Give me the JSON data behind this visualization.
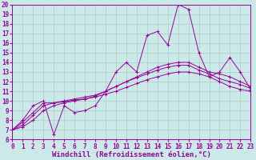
{
  "background_color": "#cbe9e9",
  "line_color": "#990099",
  "grid_color": "#aacccc",
  "xlabel": "Windchill (Refroidissement éolien,°C)",
  "xlabel_fontsize": 6.5,
  "xlabel_fontweight": "bold",
  "tick_fontsize": 5.5,
  "ylim": [
    6,
    20
  ],
  "xlim": [
    0,
    23
  ],
  "yticks": [
    6,
    7,
    8,
    9,
    10,
    11,
    12,
    13,
    14,
    15,
    16,
    17,
    18,
    19,
    20
  ],
  "xticks": [
    0,
    1,
    2,
    3,
    4,
    5,
    6,
    7,
    8,
    9,
    10,
    11,
    12,
    13,
    14,
    15,
    16,
    17,
    18,
    19,
    20,
    21,
    22,
    23
  ],
  "series": [
    [
      7,
      8,
      9.5,
      10,
      6.5,
      9.5,
      8.8,
      9,
      9.5,
      11,
      13,
      14,
      13,
      16.8,
      17.2,
      15.8,
      20,
      19.5,
      15,
      12.5,
      13,
      14.5,
      13,
      11.2
    ],
    [
      7,
      7.8,
      8.8,
      9.8,
      9.8,
      9.9,
      10.1,
      10.2,
      10.5,
      11.0,
      11.5,
      12.0,
      12.5,
      13.0,
      13.5,
      13.8,
      14.0,
      14.0,
      13.5,
      13.0,
      12.8,
      12.5,
      12.0,
      11.5
    ],
    [
      7,
      7.5,
      8.5,
      9.5,
      9.8,
      10.0,
      10.2,
      10.4,
      10.6,
      11.0,
      11.5,
      12.0,
      12.4,
      12.8,
      13.2,
      13.5,
      13.7,
      13.7,
      13.2,
      12.8,
      12.3,
      12.0,
      11.7,
      11.3
    ],
    [
      7,
      7.3,
      8.0,
      9.0,
      9.5,
      9.8,
      10.0,
      10.2,
      10.4,
      10.7,
      11.0,
      11.4,
      11.8,
      12.2,
      12.5,
      12.8,
      13.0,
      13.0,
      12.8,
      12.5,
      12.0,
      11.5,
      11.2,
      11.0
    ]
  ]
}
